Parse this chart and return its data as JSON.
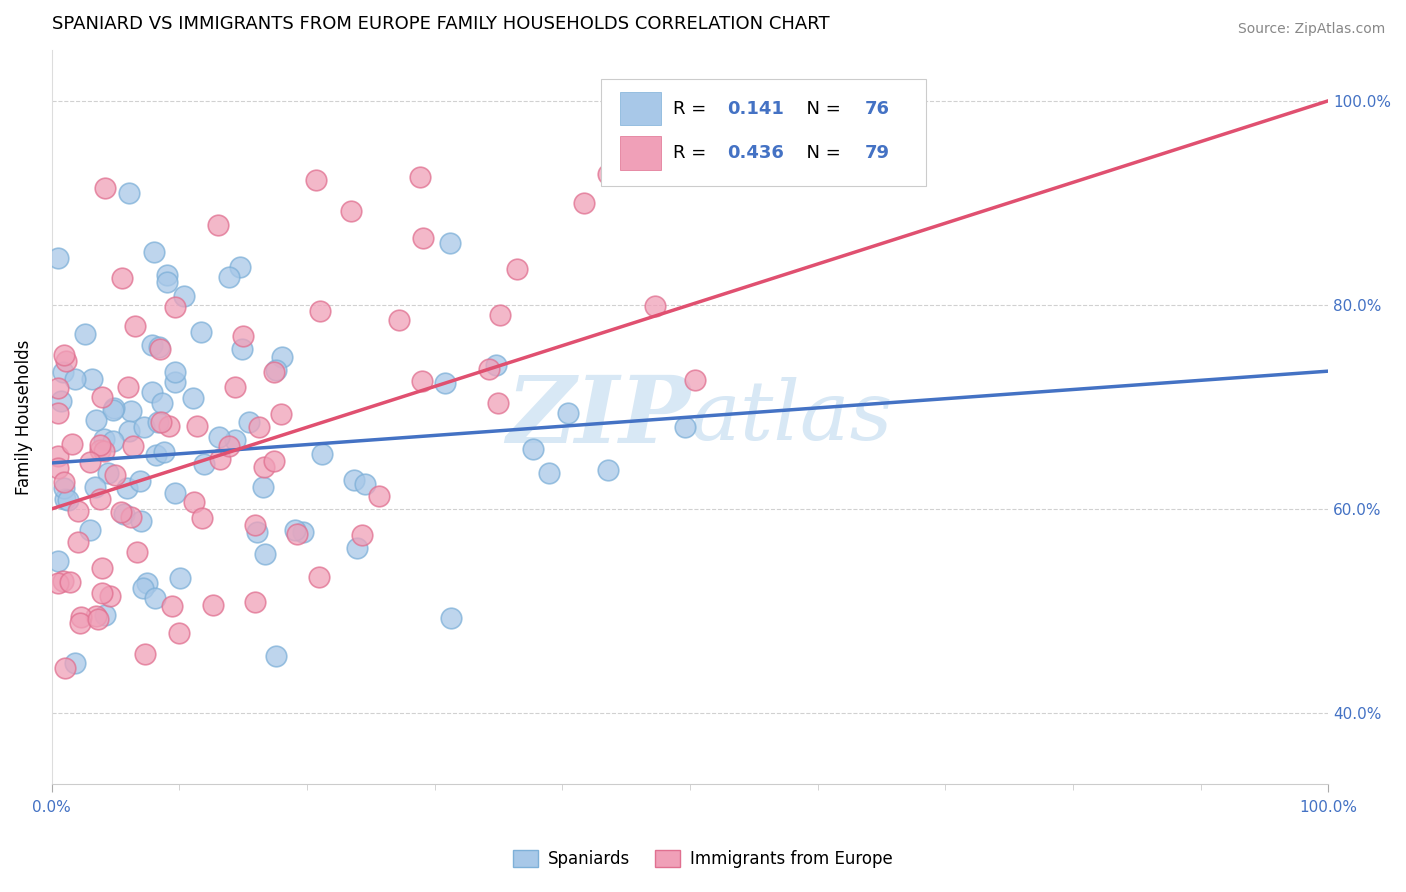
{
  "title": "SPANIARD VS IMMIGRANTS FROM EUROPE FAMILY HOUSEHOLDS CORRELATION CHART",
  "source": "Source: ZipAtlas.com",
  "ylabel": "Family Households",
  "xlim": [
    0,
    100
  ],
  "ylim": [
    33,
    105
  ],
  "blue_R": 0.141,
  "blue_N": 76,
  "pink_R": 0.436,
  "pink_N": 79,
  "blue_color": "#A8C8E8",
  "pink_color": "#F0A0B8",
  "blue_edge_color": "#7EB0D8",
  "pink_edge_color": "#E07090",
  "blue_line_color": "#4472C4",
  "pink_line_color": "#E05070",
  "watermark_zip": "ZIP",
  "watermark_atlas": "atlas",
  "yticks": [
    40,
    60,
    80,
    100
  ],
  "ytick_labels": [
    "40.0%",
    "60.0%",
    "80.0%",
    "100.0%"
  ],
  "blue_trend_x0": 0,
  "blue_trend_y0": 64.5,
  "blue_trend_x1": 100,
  "blue_trend_y1": 73.5,
  "pink_trend_x0": 0,
  "pink_trend_y0": 60.0,
  "pink_trend_x1": 100,
  "pink_trend_y1": 100.0
}
